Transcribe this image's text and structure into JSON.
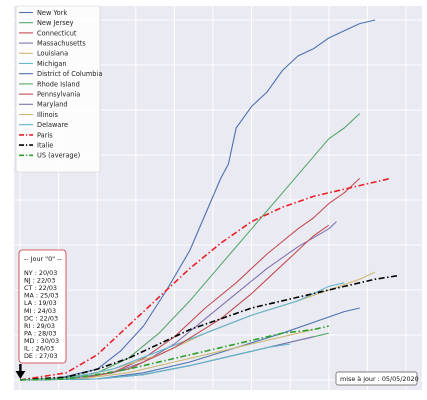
{
  "chart_data": {
    "type": "line",
    "title": "",
    "xlabel": "",
    "ylabel": "",
    "xlim": [
      0,
      50
    ],
    "ylim": [
      0,
      1
    ],
    "grid": true,
    "legend_position": "top-left",
    "series": [
      {
        "name": "New York",
        "color": "#4c72b0",
        "style": "solid",
        "x": [
          0,
          5,
          10,
          13,
          16,
          19,
          22,
          24,
          26,
          27,
          28,
          30,
          32,
          34,
          36,
          38,
          40,
          42,
          44,
          46
        ],
        "y": [
          0,
          0.005,
          0.03,
          0.08,
          0.15,
          0.25,
          0.36,
          0.46,
          0.56,
          0.6,
          0.7,
          0.76,
          0.8,
          0.86,
          0.9,
          0.92,
          0.95,
          0.97,
          0.99,
          1.0
        ]
      },
      {
        "name": "New Jersey",
        "color": "#55a868",
        "style": "solid",
        "x": [
          0,
          5,
          10,
          14,
          18,
          22,
          26,
          30,
          34,
          36,
          38,
          40,
          42,
          43,
          44
        ],
        "y": [
          0,
          0.004,
          0.02,
          0.06,
          0.13,
          0.22,
          0.32,
          0.42,
          0.52,
          0.57,
          0.62,
          0.67,
          0.7,
          0.72,
          0.74
        ]
      },
      {
        "name": "Connecticut",
        "color": "#c44e52",
        "style": "solid",
        "x": [
          0,
          6,
          12,
          16,
          20,
          24,
          28,
          32,
          36,
          38,
          40,
          42,
          43,
          44
        ],
        "y": [
          0,
          0.003,
          0.02,
          0.06,
          0.12,
          0.2,
          0.27,
          0.35,
          0.42,
          0.45,
          0.49,
          0.52,
          0.54,
          0.56
        ]
      },
      {
        "name": "Massachusetts",
        "color": "#8172b2",
        "style": "solid",
        "x": [
          0,
          6,
          12,
          16,
          20,
          24,
          28,
          32,
          36,
          40,
          41
        ],
        "y": [
          0,
          0.003,
          0.02,
          0.05,
          0.1,
          0.17,
          0.24,
          0.31,
          0.37,
          0.42,
          0.44
        ]
      },
      {
        "name": "Louisiana",
        "color": "#ccb974",
        "style": "solid",
        "x": [
          0,
          6,
          12,
          18,
          24,
          30,
          36,
          40,
          44,
          46
        ],
        "y": [
          0,
          0.004,
          0.03,
          0.07,
          0.13,
          0.18,
          0.22,
          0.25,
          0.28,
          0.3
        ]
      },
      {
        "name": "Michigan",
        "color": "#64b5cd",
        "style": "solid",
        "x": [
          0,
          6,
          12,
          18,
          24,
          30,
          36,
          38,
          40,
          42
        ],
        "y": [
          0,
          0.004,
          0.03,
          0.08,
          0.13,
          0.18,
          0.22,
          0.24,
          0.26,
          0.27
        ]
      },
      {
        "name": "District of Columbia",
        "color": "#4c72b0",
        "style": "solid",
        "x": [
          0,
          10,
          16,
          22,
          28,
          34,
          38,
          42,
          44
        ],
        "y": [
          0,
          0.003,
          0.02,
          0.05,
          0.09,
          0.13,
          0.16,
          0.19,
          0.2
        ]
      },
      {
        "name": "Rhode Island",
        "color": "#55a868",
        "style": "solid",
        "x": [
          0,
          10,
          16,
          22,
          28,
          34,
          38,
          40
        ],
        "y": [
          0,
          0.003,
          0.015,
          0.04,
          0.07,
          0.1,
          0.12,
          0.13
        ]
      },
      {
        "name": "Pennsylvania",
        "color": "#c44e52",
        "style": "solid",
        "x": [
          0,
          8,
          14,
          20,
          26,
          30,
          32,
          34,
          36,
          38,
          40
        ],
        "y": [
          0,
          0.004,
          0.03,
          0.09,
          0.17,
          0.24,
          0.28,
          0.32,
          0.36,
          0.4,
          0.43
        ]
      },
      {
        "name": "Maryland",
        "color": "#8172b2",
        "style": "solid",
        "x": [
          0,
          10,
          16,
          22,
          28,
          32,
          36,
          38
        ],
        "y": [
          0,
          0.003,
          0.015,
          0.04,
          0.07,
          0.09,
          0.11,
          0.12
        ]
      },
      {
        "name": "Illinois",
        "color": "#ccb974",
        "style": "solid",
        "x": [
          0,
          8,
          14,
          20,
          26,
          32,
          36,
          38
        ],
        "y": [
          0,
          0.004,
          0.02,
          0.05,
          0.08,
          0.11,
          0.13,
          0.14
        ]
      },
      {
        "name": "Delaware",
        "color": "#64b5cd",
        "style": "solid",
        "x": [
          0,
          10,
          16,
          22,
          28,
          32,
          35
        ],
        "y": [
          0,
          0.003,
          0.015,
          0.04,
          0.07,
          0.09,
          0.1
        ]
      },
      {
        "name": "Paris",
        "color": "#e8202a",
        "style": "dashdot",
        "x": [
          0,
          6,
          10,
          14,
          18,
          22,
          26,
          30,
          34,
          38,
          42,
          46,
          48
        ],
        "y": [
          0,
          0.02,
          0.07,
          0.15,
          0.23,
          0.31,
          0.38,
          0.44,
          0.48,
          0.51,
          0.53,
          0.55,
          0.56
        ]
      },
      {
        "name": "Italie",
        "color": "#000000",
        "style": "dashdot",
        "x": [
          0,
          6,
          10,
          14,
          18,
          22,
          26,
          30,
          34,
          38,
          42,
          46,
          49
        ],
        "y": [
          0,
          0.008,
          0.03,
          0.06,
          0.1,
          0.14,
          0.17,
          0.2,
          0.22,
          0.24,
          0.26,
          0.28,
          0.29
        ]
      },
      {
        "name": "US (average)",
        "color": "#2ca02c",
        "style": "dashdot",
        "x": [
          0,
          6,
          10,
          14,
          18,
          22,
          26,
          30,
          34,
          38,
          40
        ],
        "y": [
          0,
          0.003,
          0.015,
          0.03,
          0.05,
          0.07,
          0.09,
          0.11,
          0.13,
          0.14,
          0.15
        ]
      }
    ]
  },
  "day0_box": {
    "title": "-- Jour \"0\" --",
    "entries": [
      "NY : 20/03",
      "NJ : 22/03",
      "CT : 22/03",
      "MA : 25/03",
      "LA : 19/03",
      "MI : 24/03",
      "DC : 22/03",
      "RI : 29/03",
      "PA : 28/03",
      "MD : 30/03",
      "IL : 26/03",
      "DE : 27/03"
    ]
  },
  "update_note": "mise à jour : 05/05/2020"
}
